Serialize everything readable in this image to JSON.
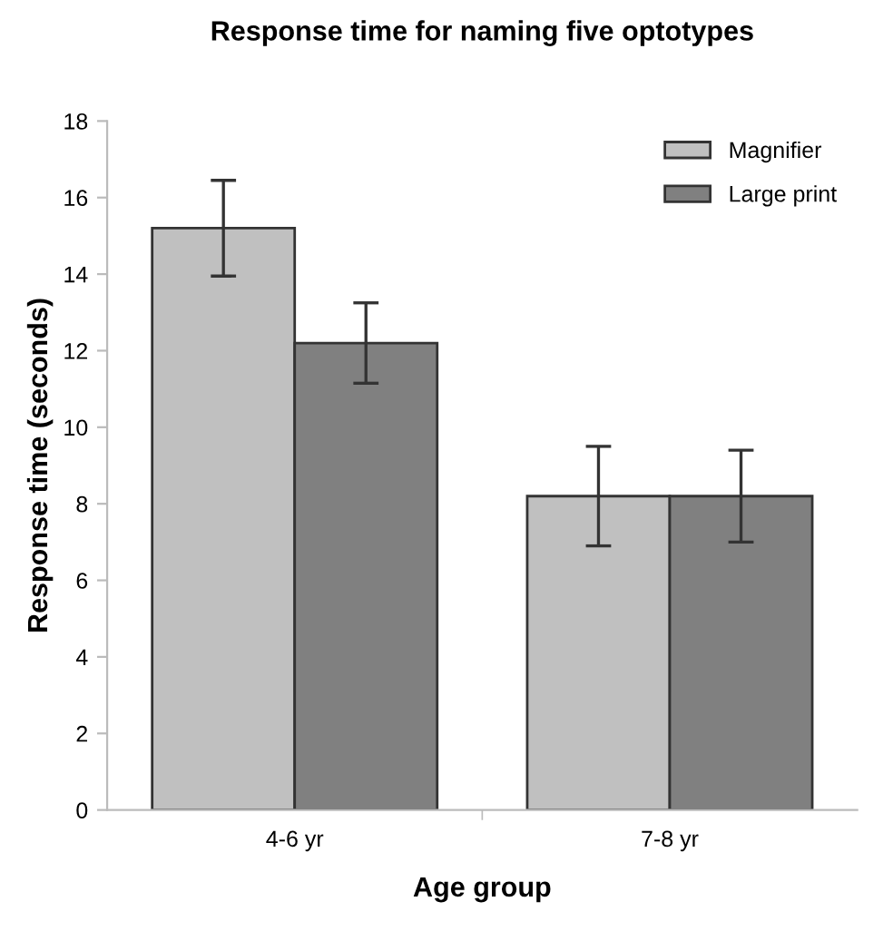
{
  "chart_data": {
    "type": "bar",
    "title": "Response time for naming five optotypes",
    "xlabel": "Age group",
    "ylabel": "Response time (seconds)",
    "categories": [
      "4-6 yr",
      "7-8 yr"
    ],
    "series": [
      {
        "name": "Magnifier",
        "color": "#c0c0c0",
        "values": [
          15.2,
          8.2
        ],
        "errors": [
          1.25,
          1.3
        ]
      },
      {
        "name": "Large print",
        "color": "#808080",
        "values": [
          12.2,
          8.2
        ],
        "errors": [
          1.05,
          1.2
        ]
      }
    ],
    "ylim": [
      0,
      18
    ],
    "yticks": [
      0,
      2,
      4,
      6,
      8,
      10,
      12,
      14,
      16,
      18
    ],
    "grid": false,
    "legend": "top right"
  }
}
